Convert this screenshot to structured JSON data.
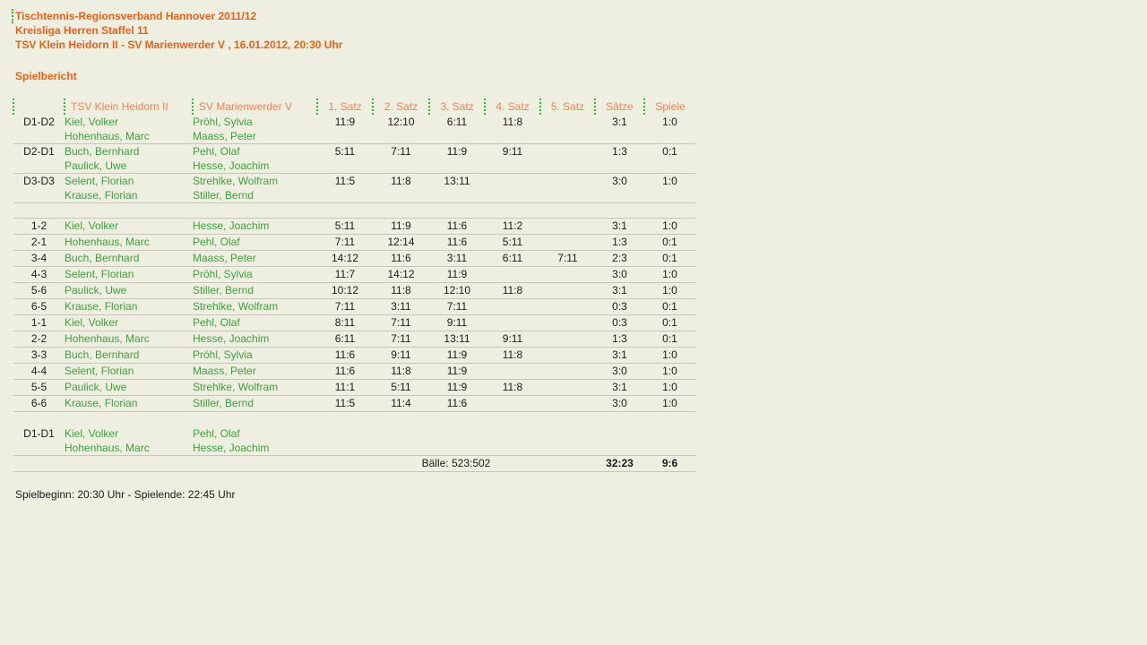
{
  "colors": {
    "background": "#eeeee1",
    "heading_orange": "#e4621a",
    "table_header_orange": "#f08256",
    "player_green": "#3fa03a",
    "dotted_border_green": "#2eb82e",
    "row_divider_gray": "#c6c6ba",
    "text_black": "#1b1b1b"
  },
  "header": {
    "line1": "Tischtennis-Regionsverband Hannover 2011/12",
    "line2": "Kreisliga Herren Staffel 11",
    "line3": "TSV Klein Heidorn II - SV Marienwerder V , 16.01.2012, 20:30 Uhr"
  },
  "section_title": "Spielbericht",
  "footer": "Spielbeginn: 20:30 Uhr - Spielende: 22:45 Uhr",
  "table": {
    "columns": [
      "",
      "TSV Klein Heidorn II",
      "SV Marienwerder V",
      "1. Satz",
      "2. Satz",
      "3. Satz",
      "4. Satz",
      "5. Satz",
      "Sätze",
      "Spiele"
    ],
    "rows": [
      {
        "type": "double",
        "match": "D1-D2",
        "home": [
          "Kiel, Volker",
          "Hohenhaus, Marc"
        ],
        "away": [
          "Pröhl, Sylvia",
          "Maass, Peter"
        ],
        "sets": [
          "11:9",
          "12:10",
          "6:11",
          "11:8",
          ""
        ],
        "saetze": "3:1",
        "spiele": "1:0",
        "divider": true
      },
      {
        "type": "double",
        "match": "D2-D1",
        "home": [
          "Buch, Bernhard",
          "Paulick, Uwe"
        ],
        "away": [
          "Pehl, Olaf",
          "Hesse, Joachim"
        ],
        "sets": [
          "5:11",
          "7:11",
          "11:9",
          "9:11",
          ""
        ],
        "saetze": "1:3",
        "spiele": "0:1",
        "divider": true
      },
      {
        "type": "double",
        "match": "D3-D3",
        "home": [
          "Selent, Florian",
          "Krause, Florian"
        ],
        "away": [
          "Strehlke, Wolfram",
          "Stiller, Bernd"
        ],
        "sets": [
          "11:5",
          "11:8",
          "13:11",
          "",
          ""
        ],
        "saetze": "3:0",
        "spiele": "1:0",
        "divider": true
      },
      {
        "type": "spacer",
        "divider": true
      },
      {
        "type": "single",
        "match": "1-2",
        "home": [
          "Kiel, Volker"
        ],
        "away": [
          "Hesse, Joachim"
        ],
        "sets": [
          "5:11",
          "11:9",
          "11:6",
          "11:2",
          ""
        ],
        "saetze": "3:1",
        "spiele": "1:0",
        "divider": true
      },
      {
        "type": "single",
        "match": "2-1",
        "home": [
          "Hohenhaus, Marc"
        ],
        "away": [
          "Pehl, Olaf"
        ],
        "sets": [
          "7:11",
          "12:14",
          "11:6",
          "5:11",
          ""
        ],
        "saetze": "1:3",
        "spiele": "0:1",
        "divider": true
      },
      {
        "type": "single",
        "match": "3-4",
        "home": [
          "Buch, Bernhard"
        ],
        "away": [
          "Maass, Peter"
        ],
        "sets": [
          "14:12",
          "11:6",
          "3:11",
          "6:11",
          "7:11"
        ],
        "saetze": "2:3",
        "spiele": "0:1",
        "divider": true
      },
      {
        "type": "single",
        "match": "4-3",
        "home": [
          "Selent, Florian"
        ],
        "away": [
          "Pröhl, Sylvia"
        ],
        "sets": [
          "11:7",
          "14:12",
          "11:9",
          "",
          ""
        ],
        "saetze": "3:0",
        "spiele": "1:0",
        "divider": true
      },
      {
        "type": "single",
        "match": "5-6",
        "home": [
          "Paulick, Uwe"
        ],
        "away": [
          "Stiller, Bernd"
        ],
        "sets": [
          "10:12",
          "11:8",
          "12:10",
          "11:8",
          ""
        ],
        "saetze": "3:1",
        "spiele": "1:0",
        "divider": true
      },
      {
        "type": "single",
        "match": "6-5",
        "home": [
          "Krause, Florian"
        ],
        "away": [
          "Strehlke, Wolfram"
        ],
        "sets": [
          "7:11",
          "3:11",
          "7:11",
          "",
          ""
        ],
        "saetze": "0:3",
        "spiele": "0:1",
        "divider": true
      },
      {
        "type": "single",
        "match": "1-1",
        "home": [
          "Kiel, Volker"
        ],
        "away": [
          "Pehl, Olaf"
        ],
        "sets": [
          "8:11",
          "7:11",
          "9:11",
          "",
          ""
        ],
        "saetze": "0:3",
        "spiele": "0:1",
        "divider": true
      },
      {
        "type": "single",
        "match": "2-2",
        "home": [
          "Hohenhaus, Marc"
        ],
        "away": [
          "Hesse, Joachim"
        ],
        "sets": [
          "6:11",
          "7:11",
          "13:11",
          "9:11",
          ""
        ],
        "saetze": "1:3",
        "spiele": "0:1",
        "divider": true
      },
      {
        "type": "single",
        "match": "3-3",
        "home": [
          "Buch, Bernhard"
        ],
        "away": [
          "Pröhl, Sylvia"
        ],
        "sets": [
          "11:6",
          "9:11",
          "11:9",
          "11:8",
          ""
        ],
        "saetze": "3:1",
        "spiele": "1:0",
        "divider": true
      },
      {
        "type": "single",
        "match": "4-4",
        "home": [
          "Selent, Florian"
        ],
        "away": [
          "Maass, Peter"
        ],
        "sets": [
          "11:6",
          "11:8",
          "11:9",
          "",
          ""
        ],
        "saetze": "3:0",
        "spiele": "1:0",
        "divider": true
      },
      {
        "type": "single",
        "match": "5-5",
        "home": [
          "Paulick, Uwe"
        ],
        "away": [
          "Strehlke, Wolfram"
        ],
        "sets": [
          "11:1",
          "5:11",
          "11:9",
          "11:8",
          ""
        ],
        "saetze": "3:1",
        "spiele": "1:0",
        "divider": true
      },
      {
        "type": "single",
        "match": "6-6",
        "home": [
          "Krause, Florian"
        ],
        "away": [
          "Stiller, Bernd"
        ],
        "sets": [
          "11:5",
          "11:4",
          "11:6",
          "",
          ""
        ],
        "saetze": "3:0",
        "spiele": "1:0",
        "divider": true
      },
      {
        "type": "spacer",
        "divider": false
      },
      {
        "type": "double",
        "match": "D1-D1",
        "home": [
          "Kiel, Volker",
          "Hohenhaus, Marc"
        ],
        "away": [
          "Pehl, Olaf",
          "Hesse, Joachim"
        ],
        "sets": [
          "",
          "",
          "",
          "",
          ""
        ],
        "saetze": "",
        "spiele": "",
        "divider": true
      },
      {
        "type": "totals",
        "balls": "Bälle: 523:502",
        "saetze": "32:23",
        "spiele": "9:6",
        "divider": true
      }
    ]
  }
}
